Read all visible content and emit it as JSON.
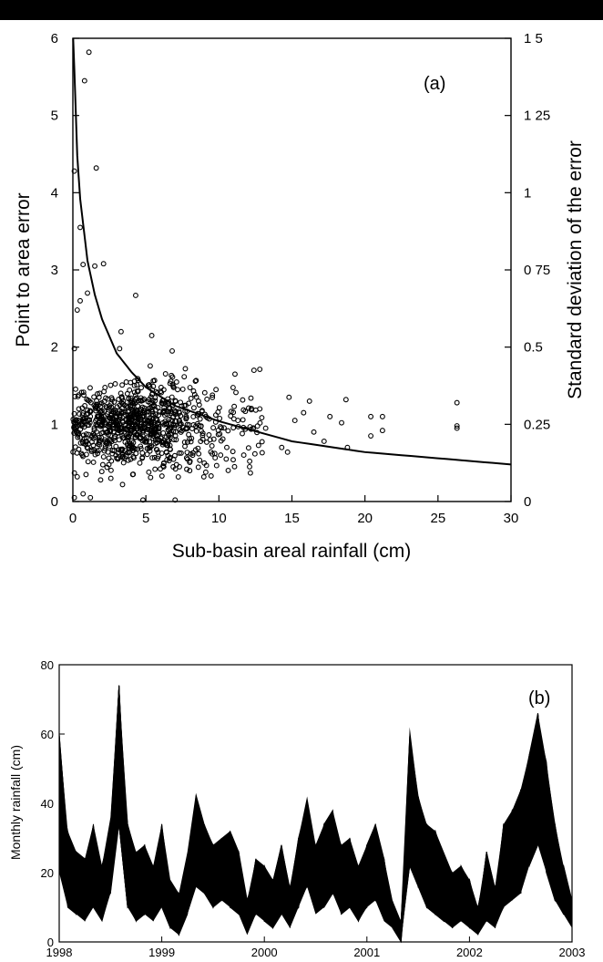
{
  "chart_data": [
    {
      "type": "scatter",
      "panel_label": "(a)",
      "xlabel": "Sub-basin areal rainfall (cm)",
      "ylabel": "Point to area error",
      "y2label": "Standard deviation of the error",
      "xlim": [
        0,
        30
      ],
      "ylim": [
        0,
        6
      ],
      "y2lim": [
        0,
        1.5
      ],
      "xticks": [
        "0",
        "5",
        "10",
        "15",
        "20",
        "25",
        "30"
      ],
      "yticks": [
        "0",
        "1",
        "2",
        "3",
        "4",
        "5",
        "6"
      ],
      "y2ticks": [
        "0",
        "0.25",
        "0.5",
        "0 75",
        "1",
        "1 25",
        "1 5"
      ],
      "grid": false,
      "series": [
        {
          "style": "open-circle markers",
          "points": [
            [
              1.1,
              5.82
            ],
            [
              0.8,
              5.45
            ],
            [
              1.6,
              4.32
            ],
            [
              0.1,
              4.28
            ],
            [
              0.5,
              3.55
            ],
            [
              1.5,
              3.05
            ],
            [
              2.1,
              3.08
            ],
            [
              0.7,
              3.07
            ],
            [
              1.0,
              2.7
            ],
            [
              4.3,
              2.67
            ],
            [
              0.5,
              2.6
            ],
            [
              0.3,
              2.48
            ],
            [
              3.3,
              2.2
            ],
            [
              5.4,
              2.15
            ],
            [
              3.2,
              1.98
            ],
            [
              0.1,
              1.98
            ],
            [
              6.8,
              1.95
            ],
            [
              7.7,
              1.72
            ],
            [
              11.1,
              1.65
            ],
            [
              12.4,
              1.7
            ],
            [
              14.8,
              1.35
            ],
            [
              16.2,
              1.3
            ],
            [
              18.7,
              1.32
            ],
            [
              26.3,
              1.28
            ],
            [
              20.4,
              1.1
            ],
            [
              21.2,
              1.1
            ],
            [
              21.2,
              0.92
            ],
            [
              20.4,
              0.85
            ],
            [
              26.3,
              0.98
            ],
            [
              26.3,
              0.95
            ],
            [
              17.6,
              1.1
            ],
            [
              18.4,
              1.02
            ],
            [
              18.8,
              0.7
            ],
            [
              17.2,
              0.78
            ],
            [
              16.5,
              0.9
            ],
            [
              15.8,
              1.15
            ],
            [
              15.2,
              1.05
            ],
            [
              14.3,
              0.7
            ],
            [
              14.7,
              0.64
            ],
            [
              13.2,
              0.95
            ],
            [
              12.8,
              1.2
            ],
            [
              12.1,
              0.45
            ],
            [
              11.6,
              0.88
            ],
            [
              11.3,
              1.05
            ],
            [
              10.5,
              0.55
            ],
            [
              9.8,
              1.45
            ],
            [
              9.4,
              0.8
            ],
            [
              9.1,
              0.38
            ],
            [
              8.6,
              1.3
            ],
            [
              8.2,
              0.6
            ],
            [
              0.1,
              0.05
            ],
            [
              0.7,
              0.1
            ],
            [
              1.2,
              0.05
            ],
            [
              4.8,
              0.02
            ],
            [
              7.0,
              0.02
            ],
            [
              0.3,
              0.32
            ],
            [
              0.9,
              0.35
            ],
            [
              1.9,
              0.28
            ],
            [
              2.6,
              0.3
            ],
            [
              3.4,
              0.22
            ],
            [
              4.1,
              0.35
            ],
            [
              5.2,
              0.38
            ],
            [
              6.1,
              0.33
            ],
            [
              7.3,
              0.45
            ],
            [
              8.0,
              0.4
            ]
          ],
          "cloud": {
            "x_range": [
              0,
              13
            ],
            "y_range": [
              0.3,
              1.8
            ],
            "approx_points": 900
          }
        },
        {
          "style": "solid line",
          "axis": "right",
          "x": [
            0.02,
            0.1,
            0.3,
            0.5,
            1,
            1.5,
            2,
            3,
            4,
            5,
            7,
            10,
            15,
            20,
            25,
            30
          ],
          "y": [
            1.5,
            1.4,
            1.12,
            0.98,
            0.78,
            0.67,
            0.59,
            0.48,
            0.42,
            0.37,
            0.31,
            0.26,
            0.195,
            0.16,
            0.14,
            0.12
          ]
        }
      ]
    },
    {
      "type": "line",
      "panel_label": "(b)",
      "ylabel": "Monthly rainfall (cm)",
      "xlim": [
        1998,
        2003
      ],
      "ylim": [
        0,
        80
      ],
      "xticks": [
        "1998",
        "1999",
        "2000",
        "2001",
        "2002",
        "2003"
      ],
      "yticks": [
        "0",
        "20",
        "40",
        "60",
        "80"
      ],
      "grid": false,
      "ensemble": {
        "member_count": 30,
        "x": [
          1998.0,
          1998.083,
          1998.167,
          1998.25,
          1998.333,
          1998.417,
          1998.5,
          1998.583,
          1998.667,
          1998.75,
          1998.833,
          1998.917,
          1999.0,
          1999.083,
          1999.167,
          1999.25,
          1999.333,
          1999.417,
          1999.5,
          1999.583,
          1999.667,
          1999.75,
          1999.833,
          1999.917,
          2000.0,
          2000.083,
          2000.167,
          2000.25,
          2000.333,
          2000.417,
          2000.5,
          2000.583,
          2000.667,
          2000.75,
          2000.833,
          2000.917,
          2001.0,
          2001.083,
          2001.167,
          2001.25,
          2001.333,
          2001.417,
          2001.5,
          2001.583,
          2001.667,
          2001.75,
          2001.833,
          2001.917,
          2002.0,
          2002.083,
          2002.167,
          2002.25,
          2002.333,
          2002.417,
          2002.5,
          2002.583,
          2002.667,
          2002.75,
          2002.833,
          2002.917,
          2003.0
        ],
        "low": [
          20,
          10,
          8,
          6,
          10,
          6,
          14,
          34,
          10,
          6,
          8,
          6,
          10,
          4,
          2,
          8,
          16,
          14,
          10,
          12,
          10,
          8,
          2,
          8,
          6,
          4,
          8,
          4,
          10,
          16,
          8,
          10,
          14,
          8,
          10,
          6,
          10,
          12,
          6,
          4,
          0,
          22,
          16,
          10,
          8,
          6,
          4,
          6,
          4,
          2,
          6,
          4,
          10,
          12,
          14,
          22,
          28,
          20,
          12,
          8,
          4
        ],
        "high": [
          60,
          32,
          26,
          24,
          34,
          22,
          36,
          74,
          34,
          26,
          28,
          22,
          34,
          18,
          14,
          26,
          43,
          34,
          28,
          30,
          32,
          26,
          12,
          24,
          22,
          18,
          28,
          16,
          30,
          42,
          28,
          34,
          38,
          28,
          30,
          22,
          28,
          34,
          24,
          12,
          6,
          62,
          42,
          34,
          32,
          26,
          20,
          22,
          18,
          10,
          26,
          16,
          34,
          38,
          44,
          54,
          66,
          52,
          34,
          22,
          12
        ]
      }
    }
  ]
}
